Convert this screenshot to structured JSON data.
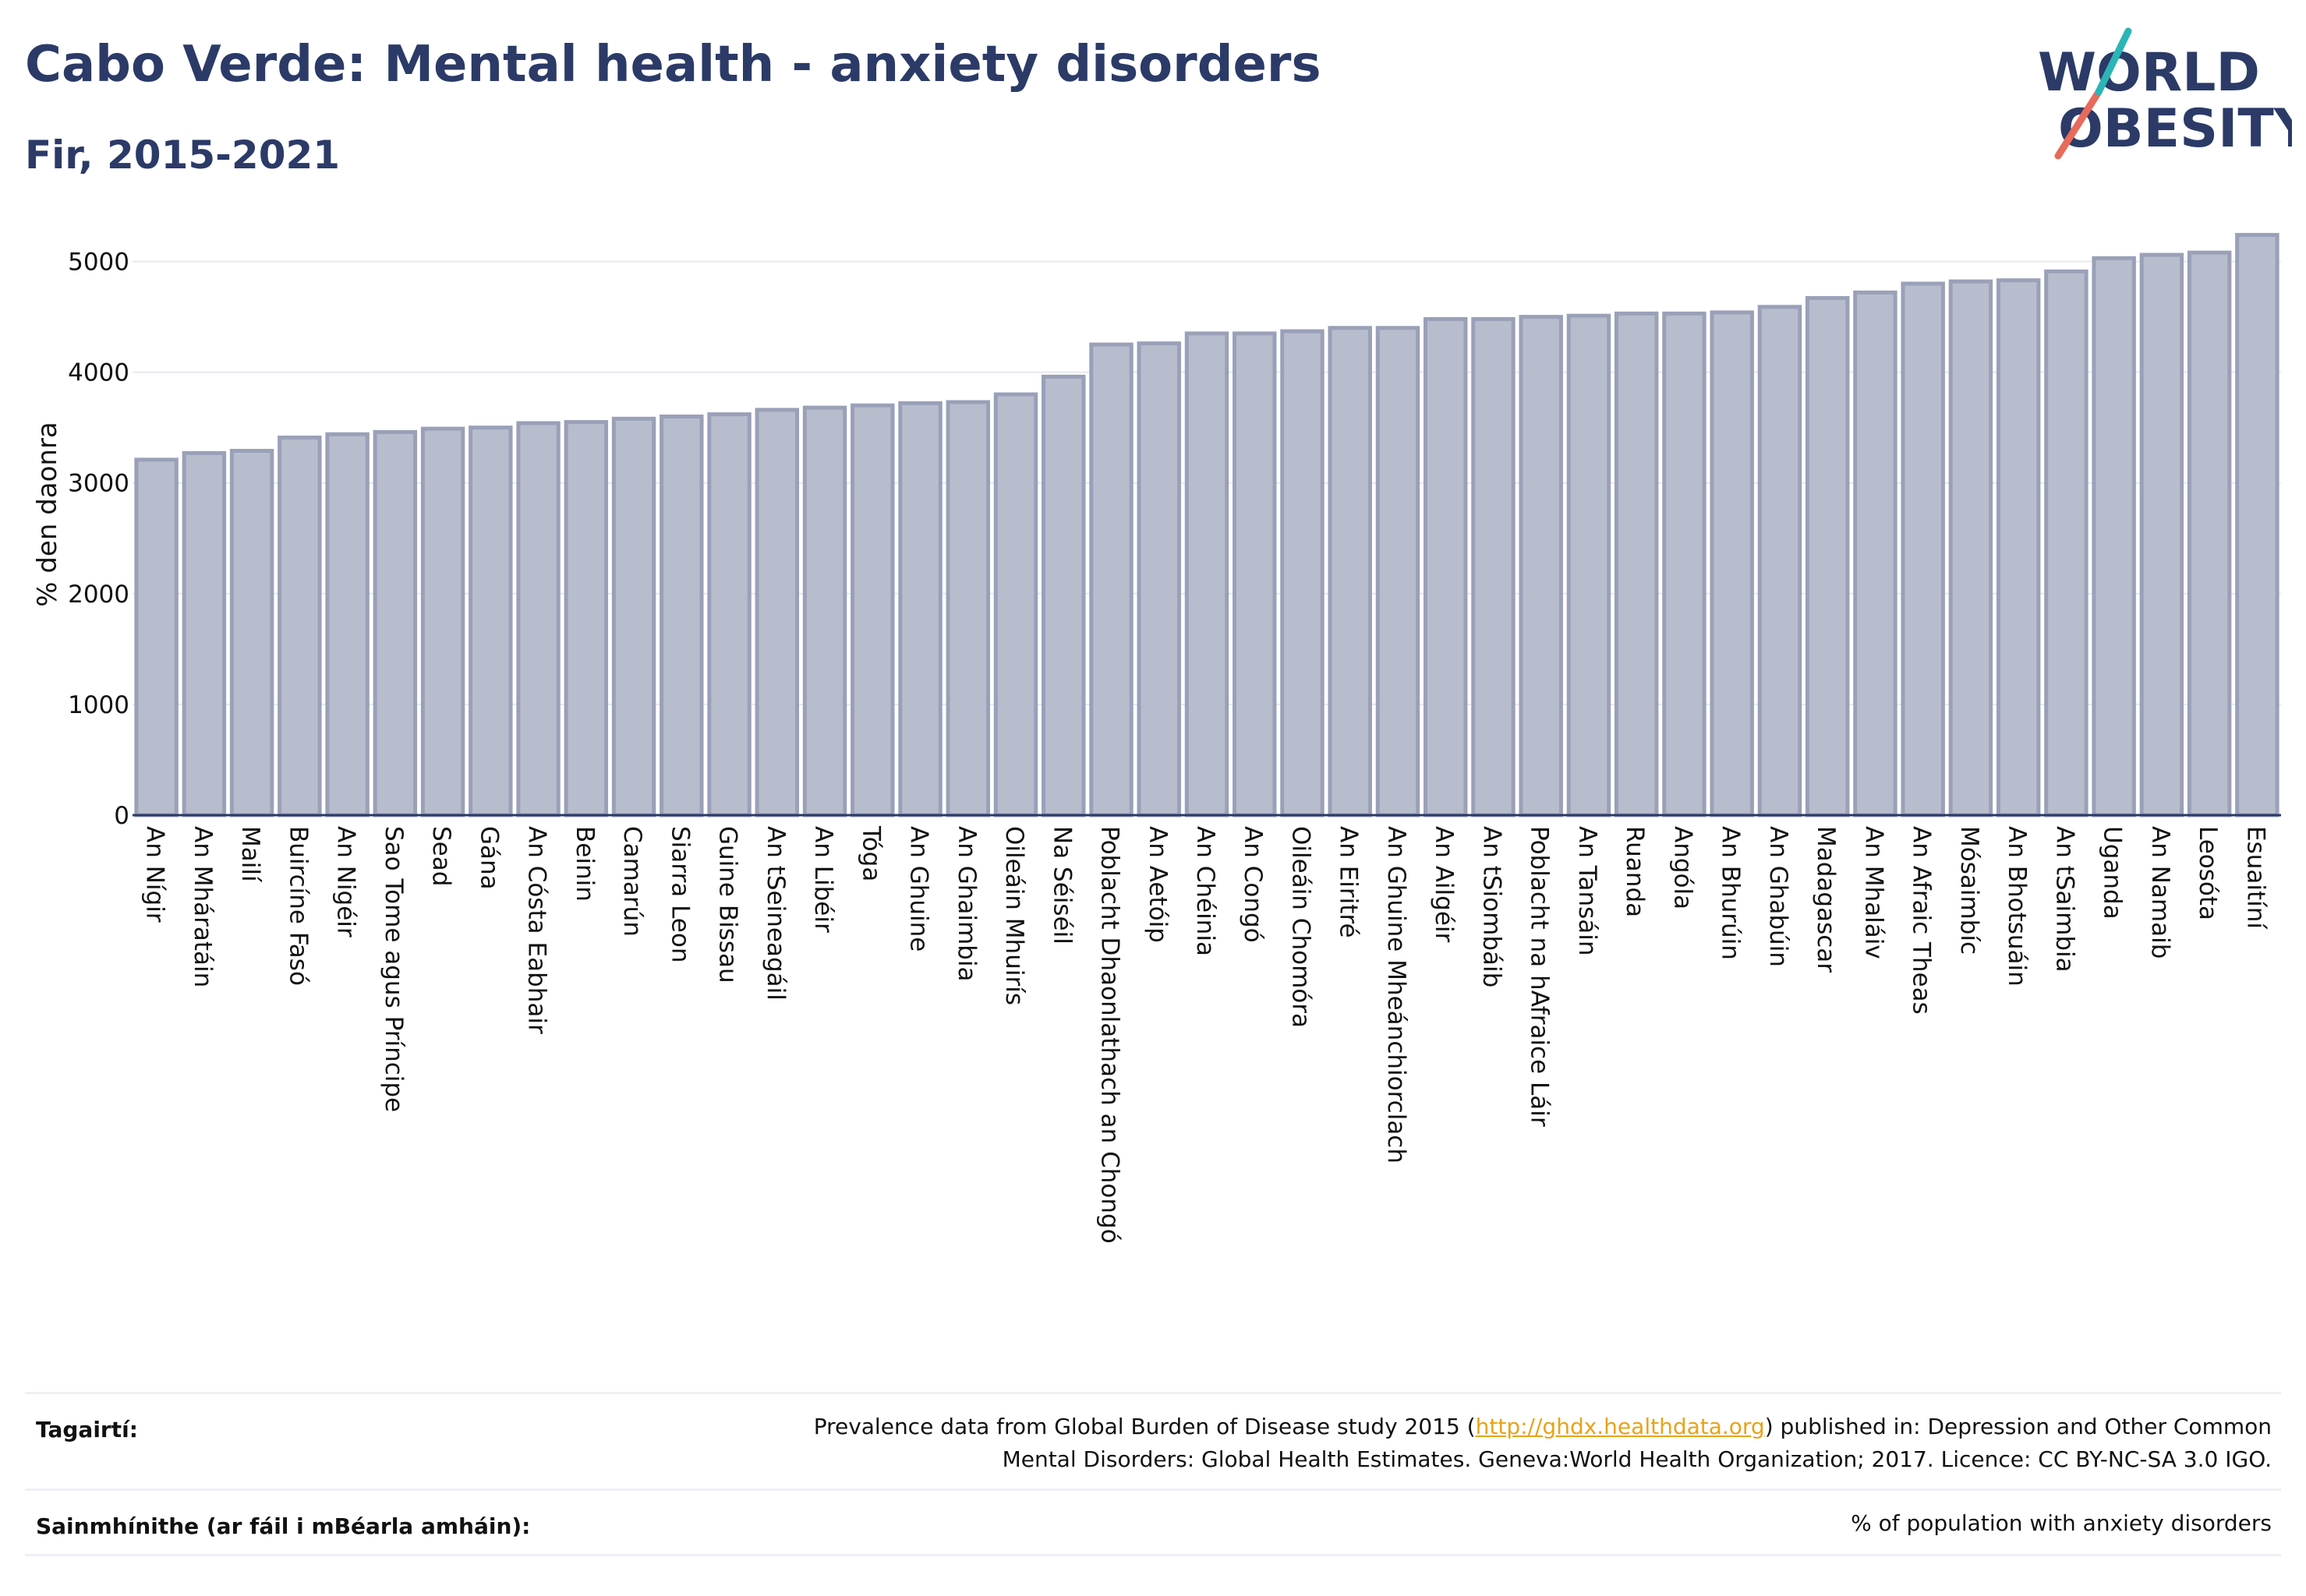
{
  "header": {
    "title": "Cabo Verde: Mental health - anxiety disorders",
    "subtitle": "Fir, 2015-2021"
  },
  "logo": {
    "line1": "WORLD",
    "line2": "OBESITY",
    "text_color": "#2b3a67",
    "accent_teal": "#2bb5b5",
    "accent_coral": "#e86a5a"
  },
  "chart_data": {
    "type": "bar",
    "title": "Cabo Verde: Mental health - anxiety disorders",
    "subtitle": "Fir, 2015-2021",
    "xlabel": "",
    "ylabel": "% den daonra",
    "ylim": [
      0,
      5250
    ],
    "yticks": [
      0,
      1000,
      2000,
      3000,
      4000,
      5000
    ],
    "grid": true,
    "bar_color": "#b8bdcd",
    "bar_edge_color": "#9aa0b8",
    "categories": [
      "An Nígir",
      "An Mháratáin",
      "Mailí",
      "Buircíne Fasó",
      "An Nigéir",
      "Sao Tome agus Príncipe",
      "Sead",
      "Gána",
      "An Cósta Eabhair",
      "Beinin",
      "Camarún",
      "Siarra Leon",
      "Guine Bissau",
      "An tSeineagáil",
      "An Libéir",
      "Tóga",
      "An Ghuine",
      "An Ghaimbia",
      "Oileáin Mhuirís",
      "Na Séiséil",
      "Poblacht Dhaonlathach an Chongó",
      "An Aetóip",
      "An Chéinia",
      "An Congó",
      "Oileáin Chomóra",
      "An Eiritré",
      "An Ghuine Mheánchiorclach",
      "An Ailgéir",
      "An tSiombáib",
      "Poblacht na hAfraice Láir",
      "An Tansáin",
      "Ruanda",
      "Angóla",
      "An Bhurúin",
      "An Ghabúin",
      "Madagascar",
      "An Mhaláiv",
      "An Afraic Theas",
      "Mósaimbíc",
      "An Bhotsuáin",
      "An tSaimbia",
      "Uganda",
      "An Namaib",
      "Leosóta",
      "Esuaitíní"
    ],
    "values": [
      3210,
      3270,
      3290,
      3410,
      3440,
      3460,
      3490,
      3500,
      3540,
      3550,
      3580,
      3600,
      3620,
      3660,
      3680,
      3700,
      3720,
      3730,
      3800,
      3960,
      4250,
      4260,
      4350,
      4350,
      4370,
      4400,
      4400,
      4480,
      4480,
      4500,
      4510,
      4530,
      4530,
      4540,
      4590,
      4670,
      4720,
      4800,
      4820,
      4830,
      4910,
      5030,
      5060,
      5080,
      5240
    ]
  },
  "footer": {
    "references_label": "Tagairtí:",
    "references_line1_pre": "Prevalence data from Global Burden of Disease study 2015 (",
    "references_link": "http://ghdx.healthdata.org",
    "references_line1_post": ") published in: Depression and Other Common",
    "references_line2": "Mental Disorders: Global Health Estimates. Geneva:World Health Organization; 2017. Licence: CC BY-NC-SA 3.0 IGO.",
    "definitions_label": "Sainmhínithe (ar fáil i mBéarla amháin):",
    "definitions_text": "% of population with anxiety disorders"
  }
}
